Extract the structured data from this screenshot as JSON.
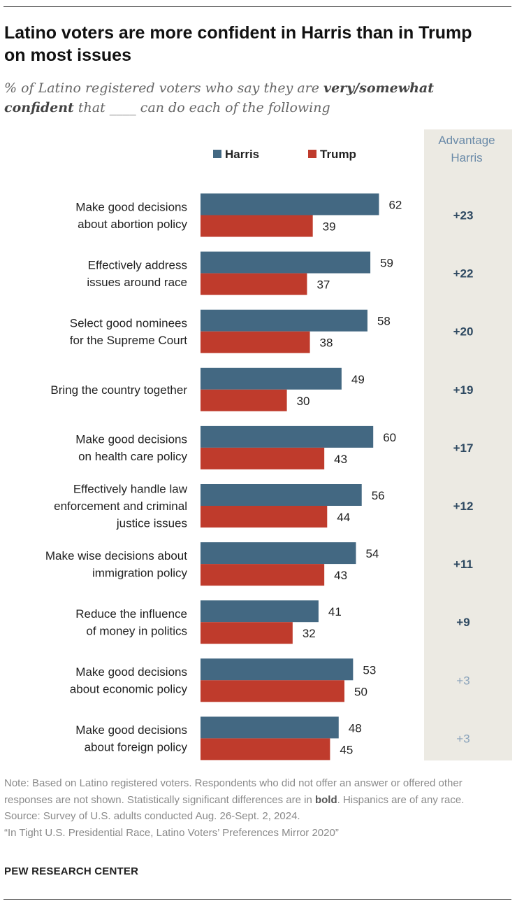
{
  "title": "Latino voters are more confident in Harris than in Trump on most issues",
  "subtitle": {
    "prefix": "% of Latino registered voters who say they are ",
    "emphasis": "very/somewhat confident",
    "suffix": " that ____ can do each of the following"
  },
  "chart_data": {
    "type": "bar",
    "orientation": "horizontal",
    "categories": [
      [
        "Make good decisions",
        "about abortion policy"
      ],
      [
        "Effectively address",
        "issues around race"
      ],
      [
        "Select good nominees",
        "for the Supreme Court"
      ],
      [
        "Bring the country together"
      ],
      [
        "Make good decisions",
        "on health care policy"
      ],
      [
        "Effectively handle law",
        "enforcement and criminal",
        "justice issues"
      ],
      [
        "Make wise decisions about",
        "immigration policy"
      ],
      [
        "Reduce the influence",
        "of money in politics"
      ],
      [
        "Make good decisions",
        "about economic policy"
      ],
      [
        "Make good decisions",
        "about foreign policy"
      ]
    ],
    "series": [
      {
        "name": "Harris",
        "color": "#436882",
        "values": [
          62,
          59,
          58,
          49,
          60,
          56,
          54,
          41,
          53,
          48
        ]
      },
      {
        "name": "Trump",
        "color": "#bf3b2c",
        "values": [
          39,
          37,
          38,
          30,
          43,
          44,
          43,
          32,
          50,
          45
        ]
      }
    ],
    "advantage": {
      "header": [
        "Advantage",
        "Harris"
      ],
      "values": [
        "+23",
        "+22",
        "+20",
        "+19",
        "+17",
        "+12",
        "+11",
        "+9",
        "+3",
        "+3"
      ],
      "significant": [
        true,
        true,
        true,
        true,
        true,
        true,
        true,
        true,
        false,
        false
      ]
    },
    "xlim": [
      0,
      100
    ],
    "legend_position": "top"
  },
  "notes": {
    "note_prefix": "Note: Based on Latino registered voters. Respondents who did not offer an answer or offered other responses are not shown. Statistically significant differences are in ",
    "note_bold": "bold",
    "note_suffix": ". Hispanics are of any race.",
    "source": "Source: Survey of U.S. adults conducted Aug. 26-Sept. 2, 2024.",
    "report": "“In Tight U.S. Presidential Race, Latino Voters’ Preferences Mirror 2020”"
  },
  "brand": "PEW RESEARCH CENTER"
}
